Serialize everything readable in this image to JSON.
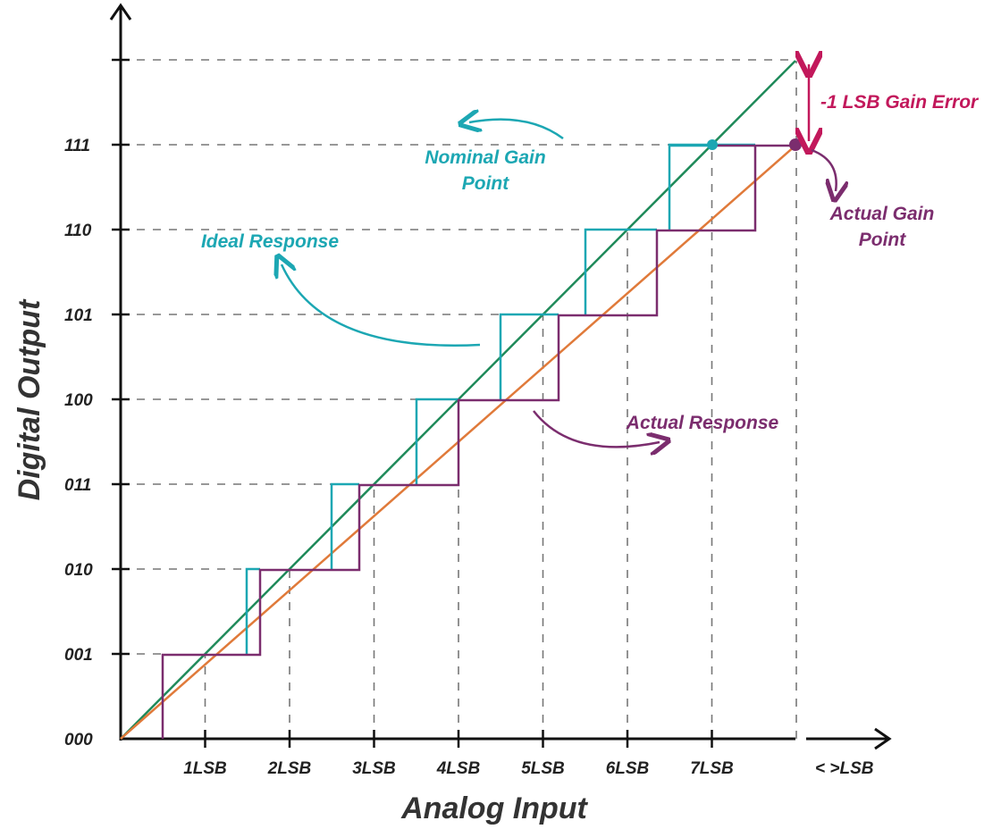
{
  "axes": {
    "x_title": "Analog Input",
    "y_title": "Digital Output",
    "x_ticks": [
      "1LSB",
      "2LSB",
      "3LSB",
      "4LSB",
      "5LSB",
      "6LSB",
      "7LSB",
      "< >LSB"
    ],
    "y_ticks": [
      "000",
      "001",
      "010",
      "011",
      "100",
      "101",
      "110",
      "111"
    ]
  },
  "annotations": {
    "nominal_gain_point": [
      "Nominal Gain",
      "Point"
    ],
    "ideal_response": "Ideal Response",
    "actual_response": "Actual Response",
    "gain_error": "-1 LSB Gain Error",
    "actual_gain_point": [
      "Actual Gain",
      "Point"
    ]
  },
  "colors": {
    "ideal_line": "#1f8a5a",
    "actual_line": "#e07a3a",
    "actual_staircase": "#7b2d6e",
    "ideal_staircase": "#1ca7b3",
    "gain_error": "#c2185b"
  }
}
